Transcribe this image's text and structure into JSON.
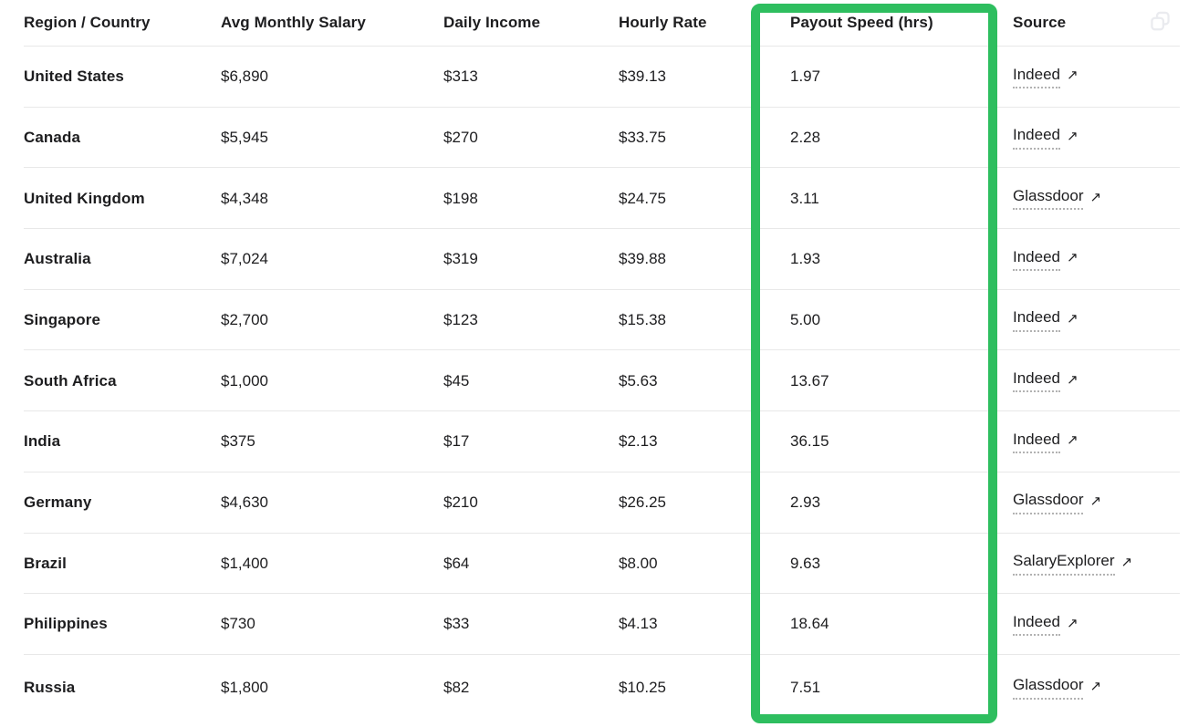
{
  "table": {
    "columns": [
      {
        "key": "region",
        "label": "Region / Country"
      },
      {
        "key": "avg_monthly_salary",
        "label": "Avg Monthly Salary"
      },
      {
        "key": "daily_income",
        "label": "Daily Income"
      },
      {
        "key": "hourly_rate",
        "label": "Hourly Rate"
      },
      {
        "key": "payout_speed_hrs",
        "label": "Payout Speed (hrs)"
      },
      {
        "key": "source",
        "label": "Source"
      }
    ],
    "rows": [
      {
        "region": "United States",
        "avg_monthly_salary": "$6,890",
        "daily_income": "$313",
        "hourly_rate": "$39.13",
        "payout_speed_hrs": "1.97",
        "source": "Indeed"
      },
      {
        "region": "Canada",
        "avg_monthly_salary": "$5,945",
        "daily_income": "$270",
        "hourly_rate": "$33.75",
        "payout_speed_hrs": "2.28",
        "source": "Indeed"
      },
      {
        "region": "United Kingdom",
        "avg_monthly_salary": "$4,348",
        "daily_income": "$198",
        "hourly_rate": "$24.75",
        "payout_speed_hrs": "3.11",
        "source": "Glassdoor"
      },
      {
        "region": "Australia",
        "avg_monthly_salary": "$7,024",
        "daily_income": "$319",
        "hourly_rate": "$39.88",
        "payout_speed_hrs": "1.93",
        "source": "Indeed"
      },
      {
        "region": "Singapore",
        "avg_monthly_salary": "$2,700",
        "daily_income": "$123",
        "hourly_rate": "$15.38",
        "payout_speed_hrs": "5.00",
        "source": "Indeed"
      },
      {
        "region": "South Africa",
        "avg_monthly_salary": "$1,000",
        "daily_income": "$45",
        "hourly_rate": "$5.63",
        "payout_speed_hrs": "13.67",
        "source": "Indeed"
      },
      {
        "region": "India",
        "avg_monthly_salary": "$375",
        "daily_income": "$17",
        "hourly_rate": "$2.13",
        "payout_speed_hrs": "36.15",
        "source": "Indeed"
      },
      {
        "region": "Germany",
        "avg_monthly_salary": "$4,630",
        "daily_income": "$210",
        "hourly_rate": "$26.25",
        "payout_speed_hrs": "2.93",
        "source": "Glassdoor"
      },
      {
        "region": "Brazil",
        "avg_monthly_salary": "$1,400",
        "daily_income": "$64",
        "hourly_rate": "$8.00",
        "payout_speed_hrs": "9.63",
        "source": "SalaryExplorer"
      },
      {
        "region": "Philippines",
        "avg_monthly_salary": "$730",
        "daily_income": "$33",
        "hourly_rate": "$4.13",
        "payout_speed_hrs": "18.64",
        "source": "Indeed"
      },
      {
        "region": "Russia",
        "avg_monthly_salary": "$1,800",
        "daily_income": "$82",
        "hourly_rate": "$10.25",
        "payout_speed_hrs": "7.51",
        "source": "Glassdoor"
      }
    ]
  },
  "highlight": {
    "highlighted_column": "Payout Speed (hrs)",
    "color": "#2ebe5f"
  },
  "icons": {
    "external_link": "↗",
    "copy": "copy-icon"
  }
}
